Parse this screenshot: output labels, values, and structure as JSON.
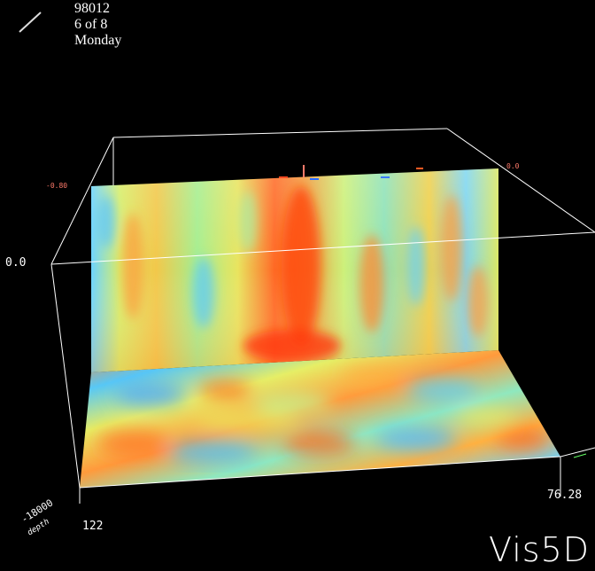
{
  "app": {
    "brand": "Vis5D"
  },
  "timestep": {
    "date": "98012",
    "position": "6 of 8",
    "weekday": "Monday"
  },
  "axes": {
    "z_label": "0.0",
    "lon_left": "122",
    "lon_right": "76.28",
    "depth_value": "-18000",
    "depth_name": "depth"
  },
  "slices": {
    "vertical_slice_value": "-0.80",
    "vertical_slice_value_right": "0.0"
  },
  "colors": {
    "background": "#000000",
    "box": "#ffffff",
    "slice_label": "#ff7a6a",
    "colormap": [
      "#1f7fff",
      "#46c8ff",
      "#9ff5c6",
      "#e8f56a",
      "#ffb838",
      "#ff5a1a"
    ]
  }
}
